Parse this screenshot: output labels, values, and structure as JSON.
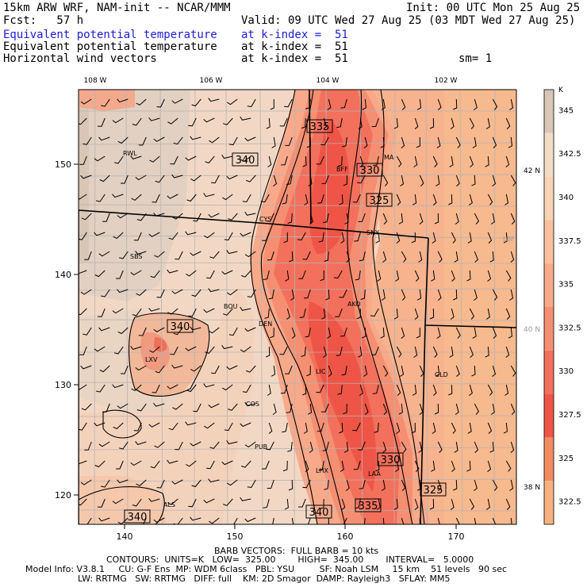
{
  "header": {
    "model": "15km ARW WRF, NAM-init -- NCAR/MMM",
    "init": "Init: 00 UTC Mon 25 Aug 25",
    "fcst": "Fcst:   57 h",
    "valid": "Valid: 09 UTC Wed 27 Aug 25 (03 MDT Wed 27 Aug 25)",
    "rows": [
      {
        "name": "Equivalent potential temperature",
        "level": "at k-index =  51",
        "extra": "",
        "color": "#1c1cd0"
      },
      {
        "name": "Equivalent potential temperature",
        "level": "at k-index =  51",
        "extra": "",
        "color": "#000000"
      },
      {
        "name": "Horizontal wind vectors",
        "level": "at k-index =  51",
        "extra": "sm= 1",
        "color": "#000000"
      }
    ]
  },
  "map": {
    "lon_labels": [
      "108 W",
      "106 W",
      "104 W",
      "102 W"
    ],
    "lat_labels": [
      "42 N",
      "40 N",
      "38 N"
    ],
    "x_ticks": [
      "140",
      "150",
      "160",
      "170"
    ],
    "y_ticks": [
      "150",
      "140",
      "130",
      "120"
    ],
    "contour_labels": [
      "335",
      "340",
      "330",
      "325",
      "340",
      "330",
      "325",
      "340",
      "335",
      "340"
    ],
    "cities": [
      "RWL",
      "BFF",
      "MA",
      "CYS",
      "SNY",
      "LBF",
      "SBS",
      "BOU",
      "DEN",
      "AKO",
      "LXV",
      "LIC",
      "GLD",
      "COS",
      "PUB",
      "LHX",
      "LAA",
      "ALS"
    ]
  },
  "colorbar": {
    "unit": "K",
    "labels": [
      "345",
      "342.5",
      "340",
      "337.5",
      "335",
      "332.5",
      "330",
      "327.5",
      "325",
      "322.5"
    ],
    "colors": [
      "#d8c6b6",
      "#f2dcc6",
      "#f9d3b6",
      "#f9c0a0",
      "#f7a98a",
      "#f58f72",
      "#f2705c",
      "#ef5546",
      "#f08c60",
      "#f7b080"
    ]
  },
  "footer": {
    "barb": "BARB VECTORS:  FULL BARB = 10 kts",
    "contours": "CONTOURS:  UNITS=K   LOW=  325.00        HIGH=  345.00        INTERVAL=   5.0000",
    "model1": "Model Info: V3.8.1     CU: G-F Ens  MP: WDM 6class   PBL: YSU         SF: Noah LSM     15 km    51 levels   90 sec",
    "model2": "LW: RRTMG   SW: RRTMG   DIFF: full    KM: 2D Smagor  DAMP: Rayleigh3   SFLAY: MM5"
  }
}
